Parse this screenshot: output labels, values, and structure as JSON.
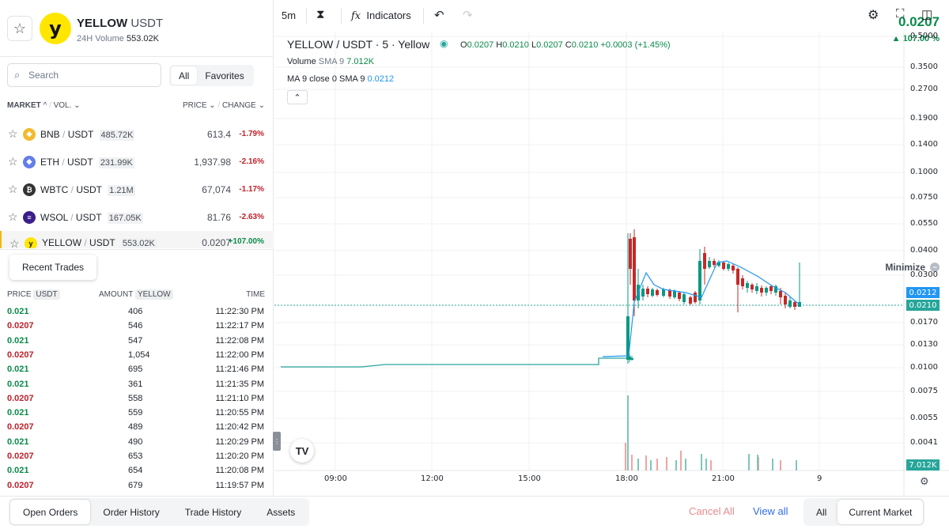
{
  "header": {
    "symbol": "YELLOW",
    "quote": "USDT",
    "volume_label": "24H Volume",
    "volume_value": "553.02K",
    "price": "0.0207",
    "change": "▲ 107.00 %",
    "logo_letter": "y"
  },
  "search": {
    "placeholder": "Search"
  },
  "market_tabs": [
    "All",
    "Favorites"
  ],
  "market_header": {
    "market": "MARKET",
    "vol": "VOL.",
    "price": "PRICE",
    "change": "CHANGE"
  },
  "markets": [
    {
      "base": "BNB",
      "quote": "USDT",
      "vol": "485.72K",
      "price": "613.4",
      "change": "-1.79%",
      "color": "#f3ba2f",
      "glyph": "◆"
    },
    {
      "base": "ETH",
      "quote": "USDT",
      "vol": "231.99K",
      "price": "1,937.98",
      "change": "-2.16%",
      "color": "#627eea",
      "glyph": "◆"
    },
    {
      "base": "WBTC",
      "quote": "USDT",
      "vol": "1.21M",
      "price": "67,074",
      "change": "-1.17%",
      "color": "#333333",
      "glyph": "₿"
    },
    {
      "base": "WSOL",
      "quote": "USDT",
      "vol": "167.05K",
      "price": "81.76",
      "change": "-2.63%",
      "color": "#3b1e8a",
      "glyph": "≡"
    },
    {
      "base": "YELLOW",
      "quote": "USDT",
      "vol": "553.02K",
      "price": "0.0207",
      "change": "+107.00%",
      "color": "#ffe600",
      "glyph": "y"
    }
  ],
  "recent": {
    "tab_label": "Recent Trades",
    "minimize_label": "Minimize",
    "head_price": "PRICE",
    "head_price_tag": "USDT",
    "head_amount": "AMOUNT",
    "head_amount_tag": "YELLOW",
    "head_time": "TIME",
    "trades": [
      {
        "price": "0.021",
        "amount": "406",
        "time": "11:22:30 PM",
        "side": "buy"
      },
      {
        "price": "0.0207",
        "amount": "546",
        "time": "11:22:17 PM",
        "side": "sell"
      },
      {
        "price": "0.021",
        "amount": "547",
        "time": "11:22:08 PM",
        "side": "buy"
      },
      {
        "price": "0.0207",
        "amount": "1,054",
        "time": "11:22:00 PM",
        "side": "sell"
      },
      {
        "price": "0.021",
        "amount": "695",
        "time": "11:21:46 PM",
        "side": "buy"
      },
      {
        "price": "0.021",
        "amount": "361",
        "time": "11:21:35 PM",
        "side": "buy"
      },
      {
        "price": "0.0207",
        "amount": "558",
        "time": "11:21:10 PM",
        "side": "sell"
      },
      {
        "price": "0.021",
        "amount": "559",
        "time": "11:20:55 PM",
        "side": "buy"
      },
      {
        "price": "0.0207",
        "amount": "489",
        "time": "11:20:42 PM",
        "side": "sell"
      },
      {
        "price": "0.021",
        "amount": "490",
        "time": "11:20:29 PM",
        "side": "buy"
      },
      {
        "price": "0.0207",
        "amount": "653",
        "time": "11:20:20 PM",
        "side": "sell"
      },
      {
        "price": "0.021",
        "amount": "654",
        "time": "11:20:08 PM",
        "side": "buy"
      },
      {
        "price": "0.0207",
        "amount": "679",
        "time": "11:19:57 PM",
        "side": "sell"
      }
    ]
  },
  "toolbar": {
    "interval": "5m",
    "indicators": "Indicators"
  },
  "legend": {
    "title": "YELLOW / USDT · 5 · Yellow",
    "o_label": "O",
    "o": "0.0207",
    "h_label": "H",
    "h": "0.0210",
    "l_label": "L",
    "l": "0.0207",
    "c_label": "C",
    "c": "0.0210",
    "chg": "+0.0003 (+1.45%)",
    "volume": "Volume",
    "volume_sma": "SMA 9",
    "volume_val": "7.012K",
    "ma": "MA 9 close 0 SMA 9",
    "ma_val": "0.0212"
  },
  "chart_data": {
    "type": "candlestick",
    "y_scale": "log",
    "y_ticks": [
      "0.5000",
      "0.3500",
      "0.2700",
      "0.1900",
      "0.1400",
      "0.1000",
      "0.0750",
      "0.0550",
      "0.0400",
      "0.0300",
      "0.0170",
      "0.0130",
      "0.0100",
      "0.0075",
      "0.0055",
      "0.0041"
    ],
    "x_ticks": [
      "09:00",
      "12:00",
      "15:00",
      "18:00",
      "21:00",
      "9"
    ],
    "last_price": "0.0210",
    "ma_price": "0.0212",
    "volume_label": "7.012K",
    "colors": {
      "up": "#26a69a",
      "down": "#ef5350",
      "ma": "#2196f3",
      "up_solid": "#089981",
      "down_solid": "#c62828"
    }
  },
  "bottom": {
    "tabs": [
      "Open Orders",
      "Order History",
      "Trade History",
      "Assets"
    ],
    "cancel_all": "Cancel All",
    "view_all": "View all",
    "scope": [
      "All",
      "Current Market"
    ]
  }
}
